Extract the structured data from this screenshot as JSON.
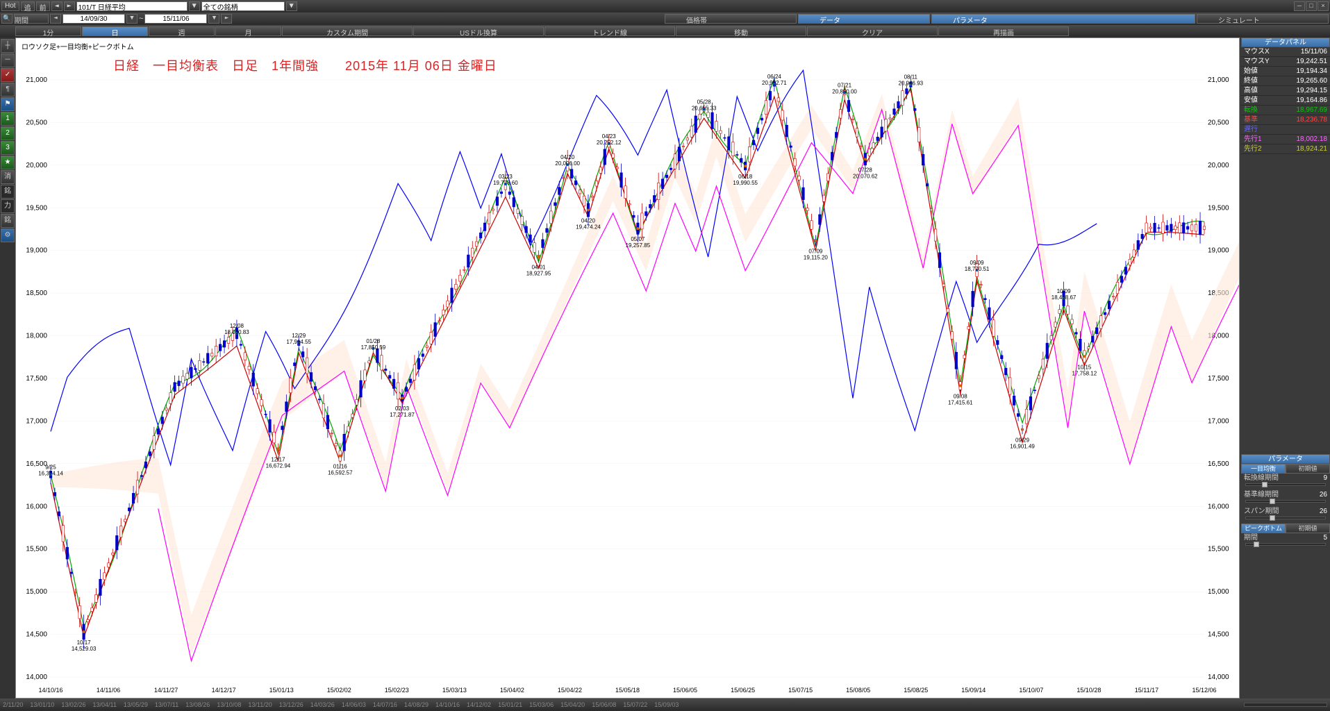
{
  "top": {
    "hot": "Hot",
    "back": "追",
    "fwd": "前",
    "symbol": "101/T 日経平均",
    "filter": "全ての銘柄"
  },
  "toolbar2": {
    "period_label": "期間",
    "date_from": "14/09/30",
    "date_to": "15/11/06",
    "price_band": "価格帯",
    "tab_data": "データ",
    "tab_param": "パラメータ",
    "tab_simulate": "シミュレート"
  },
  "timeframes": {
    "min1": "1分",
    "day": "日",
    "week": "週",
    "month": "月",
    "custom": "カスタム期間",
    "usd": "USドル換算",
    "trendline": "トレンド線",
    "move": "移動",
    "clear": "クリア",
    "redraw": "再描画"
  },
  "sidebar": {
    "items": [
      "┼",
      "－",
      "✓",
      "¶",
      "⚑",
      "1",
      "2",
      "3",
      "★",
      "消",
      "銘",
      "力",
      "銘",
      "⚙"
    ]
  },
  "chart": {
    "title": "ロウソク足+一目均衡+ピークボトム",
    "annotation": "日経　一目均衡表　日足　1年間強　　2015年 11月 06日 金曜日",
    "background": "#ffffff",
    "grid_color": "#f0f0f0",
    "y_axis": {
      "min": 14000,
      "max": 21000,
      "step": 500
    },
    "x_dates": [
      "14/10/16",
      "14/11/06",
      "14/11/27",
      "14/12/17",
      "15/01/13",
      "15/02/02",
      "15/02/23",
      "15/03/13",
      "15/04/02",
      "15/04/22",
      "15/05/18",
      "15/06/05",
      "15/06/25",
      "15/07/15",
      "15/08/05",
      "15/08/25",
      "15/09/14",
      "15/10/07",
      "15/10/28",
      "15/11/17",
      "15/12/06"
    ],
    "x_dates_bottom": [
      "2/11/20",
      "13/01/10",
      "13/02/26",
      "13/04/11",
      "13/05/29",
      "13/07/11",
      "13/08/26",
      "13/10/08",
      "13/11/20",
      "13/12/26",
      "14/03/26",
      "14/06/03",
      "14/07/16",
      "14/08/29",
      "14/10/16",
      "14/12/02",
      "15/01/21",
      "15/03/06",
      "15/04/20",
      "15/06/08",
      "15/07/22",
      "15/09/03"
    ],
    "colors": {
      "candle_up": "#ffffff",
      "candle_up_border": "#cc0000",
      "candle_down": "#0000cc",
      "tenkan": "#00aa00",
      "kijun": "#cc0000",
      "chikou": "#0000ff",
      "senkou1": "#ff00ff",
      "senkou2": "#cccc00",
      "cloud_up": "#ffe8d8",
      "cloud_down": "#d8e8ff"
    },
    "peaks": [
      {
        "date": "12/08",
        "val": "18,030.83"
      },
      {
        "date": "12/29",
        "val": "17,914.55"
      },
      {
        "date": "01/28",
        "val": "17,850.59"
      },
      {
        "date": "03/23",
        "val": "19,778.60"
      },
      {
        "date": "04/10",
        "val": "20,006.00"
      },
      {
        "date": "04/23",
        "val": "20,252.12"
      },
      {
        "date": "05/28",
        "val": "20,655.33"
      },
      {
        "date": "06/24",
        "val": "20,952.71"
      },
      {
        "date": "07/21",
        "val": "20,850.00"
      },
      {
        "date": "08/11",
        "val": "20,946.93"
      },
      {
        "date": "10/09",
        "val": "18,438.67"
      }
    ],
    "troughs": [
      {
        "date": "10/17",
        "val": "14,529.03"
      },
      {
        "date": "12/17",
        "val": "16,672.94"
      },
      {
        "date": "01/16",
        "val": "16,592.57"
      },
      {
        "date": "02/03",
        "val": "17,271.87"
      },
      {
        "date": "04/01",
        "val": "18,927.95"
      },
      {
        "date": "04/20",
        "val": "19,474.24"
      },
      {
        "date": "05/07",
        "val": "19,257.85"
      },
      {
        "date": "06/18",
        "val": "19,990.55"
      },
      {
        "date": "07/09",
        "val": "19,115.20"
      },
      {
        "date": "07/28",
        "val": "20,070.62"
      },
      {
        "date": "09/08",
        "val": "17,415.61"
      },
      {
        "date": "09/09",
        "val": "18,770.51"
      },
      {
        "date": "09/29",
        "val": "16,901.49"
      },
      {
        "date": "10/15",
        "val": "17,758.12"
      }
    ],
    "first_label": {
      "date": "9/25",
      "val": "16,374.14"
    }
  },
  "data_panel": {
    "header": "データパネル",
    "rows": [
      {
        "label": "マウスX",
        "value": "15/11/06",
        "color": "#ffffff"
      },
      {
        "label": "マウスY",
        "value": "19,242.51",
        "color": "#ffffff"
      },
      {
        "label": "始値",
        "value": "19,194.34",
        "color": "#ffffff"
      },
      {
        "label": "終値",
        "value": "19,265.60",
        "color": "#ffffff"
      },
      {
        "label": "高値",
        "value": "19,294.15",
        "color": "#ffffff"
      },
      {
        "label": "安値",
        "value": "19,164.86",
        "color": "#ffffff"
      },
      {
        "label": "転換",
        "value": "18,967.69",
        "color": "#00cc00"
      },
      {
        "label": "基準",
        "value": "18,236.78",
        "color": "#ff4444"
      },
      {
        "label": "遅行",
        "value": "",
        "color": "#6666ff"
      },
      {
        "label": "先行1",
        "value": "18,002.18",
        "color": "#ff66ff"
      },
      {
        "label": "先行2",
        "value": "18,924.21",
        "color": "#cccc44"
      }
    ]
  },
  "param_panel": {
    "header": "パラメータ",
    "ichimoku_tab": "一目均衡",
    "reset_tab": "初期値",
    "tenkan_label": "転換線期間",
    "tenkan_val": "9",
    "kijun_label": "基準線期間",
    "kijun_val": "26",
    "span_label": "スパン期間",
    "span_val": "26",
    "peakbottom_tab": "ピークボトム",
    "period_label": "期間",
    "period_val": "5"
  }
}
